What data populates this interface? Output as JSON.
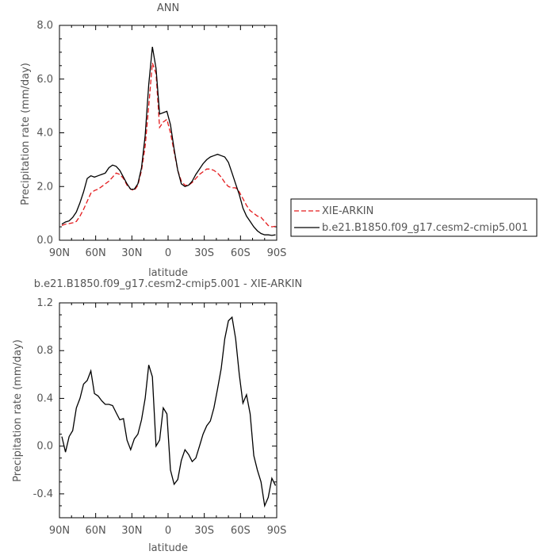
{
  "chart_data": [
    {
      "type": "line",
      "title": "ANN",
      "xlabel": "latitude",
      "ylabel": "Precipitation rate (mm/day)",
      "xlim": [
        90,
        -90
      ],
      "ylim": [
        0,
        8
      ],
      "x_ticks": [
        90,
        60,
        30,
        0,
        -30,
        -60,
        -90
      ],
      "x_tick_labels": [
        "90N",
        "60N",
        "30N",
        "0",
        "30S",
        "60S",
        "90S"
      ],
      "y_ticks": [
        0,
        2,
        4,
        6,
        8
      ],
      "y_tick_labels": [
        "0.0",
        "2.0",
        "4.0",
        "6.0",
        "8.0"
      ],
      "legend": "right",
      "series": [
        {
          "name": "XIE-ARKIN",
          "color": "#e41a1c",
          "dash": "dashed",
          "x": [
            88,
            85,
            82,
            79,
            76,
            73,
            70,
            67,
            64,
            61,
            58,
            55,
            52,
            49,
            46,
            43,
            40,
            37,
            34,
            31,
            28,
            25,
            22,
            19,
            16,
            13,
            10,
            7,
            4,
            1,
            -2,
            -5,
            -8,
            -11,
            -14,
            -17,
            -20,
            -23,
            -26,
            -29,
            -32,
            -35,
            -38,
            -41,
            -44,
            -47,
            -50,
            -53,
            -56,
            -59,
            -62,
            -65,
            -68,
            -71,
            -74,
            -77,
            -80,
            -83,
            -86,
            -89
          ],
          "y": [
            0.55,
            0.6,
            0.62,
            0.65,
            0.7,
            0.9,
            1.15,
            1.45,
            1.75,
            1.85,
            1.9,
            2.0,
            2.1,
            2.2,
            2.35,
            2.5,
            2.45,
            2.3,
            2.05,
            1.9,
            1.85,
            2.05,
            2.6,
            3.5,
            5.0,
            6.6,
            6.2,
            4.2,
            4.4,
            4.5,
            4.0,
            3.3,
            2.6,
            2.2,
            2.05,
            2.05,
            2.15,
            2.3,
            2.45,
            2.55,
            2.65,
            2.65,
            2.6,
            2.5,
            2.35,
            2.15,
            2.0,
            1.95,
            1.95,
            1.8,
            1.55,
            1.3,
            1.1,
            1.0,
            0.9,
            0.85,
            0.7,
            0.55,
            0.5,
            0.52
          ]
        },
        {
          "name": "b.e21.B1850.f09_g17.cesm2-cmip5.001",
          "color": "#000000",
          "dash": "solid",
          "x": [
            88,
            85,
            82,
            79,
            76,
            73,
            70,
            67,
            64,
            61,
            58,
            55,
            52,
            49,
            46,
            43,
            40,
            37,
            34,
            31,
            28,
            25,
            22,
            19,
            16,
            13,
            10,
            7,
            4,
            1,
            -2,
            -5,
            -8,
            -11,
            -14,
            -17,
            -20,
            -23,
            -26,
            -29,
            -32,
            -35,
            -38,
            -41,
            -44,
            -47,
            -50,
            -53,
            -56,
            -59,
            -62,
            -65,
            -68,
            -71,
            -74,
            -77,
            -80,
            -83,
            -86,
            -89
          ],
          "y": [
            0.6,
            0.68,
            0.72,
            0.85,
            1.05,
            1.4,
            1.8,
            2.3,
            2.4,
            2.35,
            2.4,
            2.45,
            2.5,
            2.7,
            2.8,
            2.75,
            2.6,
            2.35,
            2.1,
            1.9,
            1.9,
            2.1,
            2.7,
            3.9,
            5.8,
            7.2,
            6.4,
            4.7,
            4.75,
            4.8,
            4.3,
            3.4,
            2.6,
            2.1,
            2.0,
            2.05,
            2.2,
            2.45,
            2.65,
            2.85,
            3.0,
            3.1,
            3.15,
            3.2,
            3.15,
            3.1,
            2.9,
            2.5,
            2.1,
            1.7,
            1.2,
            0.9,
            0.7,
            0.5,
            0.35,
            0.25,
            0.2,
            0.2,
            0.18,
            0.2
          ]
        }
      ]
    },
    {
      "type": "line",
      "title": "b.e21.B1850.f09_g17.cesm2-cmip5.001 - XIE-ARKIN",
      "xlabel": "latitude",
      "ylabel": "Precipitation rate (mm/day)",
      "xlim": [
        90,
        -90
      ],
      "ylim": [
        -0.6,
        1.2
      ],
      "x_ticks": [
        90,
        60,
        30,
        0,
        -30,
        -60,
        -90
      ],
      "x_tick_labels": [
        "90N",
        "60N",
        "30N",
        "0",
        "30S",
        "60S",
        "90S"
      ],
      "y_ticks": [
        -0.4,
        0,
        0.4,
        0.8,
        1.2
      ],
      "y_tick_labels": [
        "-0.4",
        "0.0",
        "0.4",
        "0.8",
        "1.2"
      ],
      "series": [
        {
          "color": "#000000",
          "x": [
            88,
            85,
            82,
            79,
            76,
            73,
            70,
            67,
            64,
            61,
            58,
            55,
            52,
            49,
            46,
            43,
            40,
            37,
            34,
            31,
            28,
            25,
            22,
            19,
            16,
            13,
            10,
            7,
            4,
            1,
            -2,
            -5,
            -8,
            -11,
            -14,
            -17,
            -20,
            -23,
            -26,
            -29,
            -32,
            -35,
            -38,
            -41,
            -44,
            -47,
            -50,
            -53,
            -56,
            -59,
            -62,
            -65,
            -68,
            -71,
            -74,
            -77,
            -80,
            -83,
            -86,
            -89
          ],
          "y": [
            0.08,
            -0.05,
            0.08,
            0.13,
            0.32,
            0.4,
            0.52,
            0.55,
            0.63,
            0.44,
            0.42,
            0.38,
            0.35,
            0.35,
            0.34,
            0.28,
            0.22,
            0.23,
            0.05,
            -0.03,
            0.06,
            0.1,
            0.22,
            0.4,
            0.68,
            0.58,
            0.0,
            0.05,
            0.32,
            0.27,
            -0.2,
            -0.32,
            -0.28,
            -0.12,
            -0.03,
            -0.07,
            -0.13,
            -0.1,
            0.0,
            0.1,
            0.17,
            0.21,
            0.32,
            0.48,
            0.65,
            0.9,
            1.05,
            1.08,
            0.9,
            0.6,
            0.36,
            0.43,
            0.27,
            -0.08,
            -0.2,
            -0.3,
            -0.5,
            -0.43,
            -0.27,
            -0.33
          ]
        }
      ]
    }
  ]
}
